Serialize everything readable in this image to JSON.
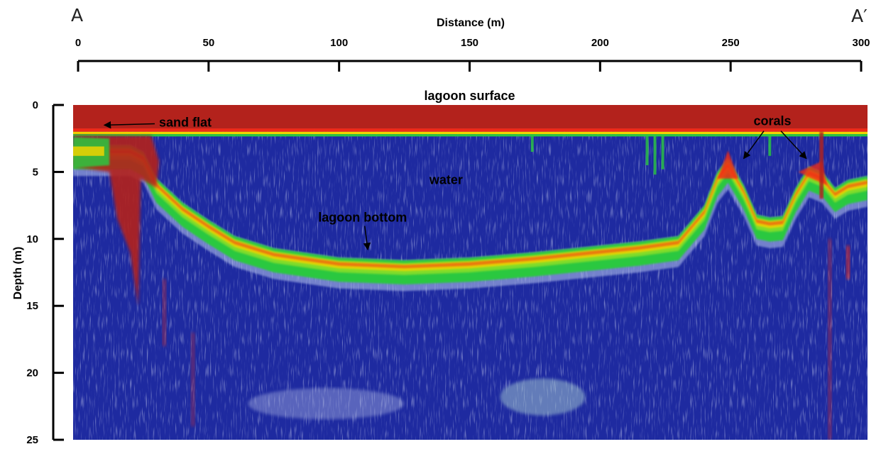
{
  "chart_data": {
    "type": "heatmap",
    "title": "",
    "profile_start_label": "A",
    "profile_end_label": "A′",
    "xlabel": "Distance (m)",
    "ylabel": "Depth (m)",
    "xlim": [
      0,
      300
    ],
    "ylim": [
      0,
      25
    ],
    "x_ticks": [
      0,
      50,
      100,
      150,
      200,
      250,
      300
    ],
    "y_ticks": [
      0,
      5,
      10,
      15,
      20,
      25
    ],
    "x_tick_position": "top",
    "y_inverted": true,
    "surface_depth_m": 2.3,
    "color_scale": {
      "strong": "#b3221c",
      "high": "#ef2a17",
      "mid": "#f0d400",
      "low": "#29c840",
      "background": "#1e2aa0"
    },
    "bottom_profile": {
      "distance_m": [
        0,
        10,
        20,
        25,
        30,
        40,
        50,
        60,
        75,
        100,
        125,
        150,
        175,
        200,
        215,
        230,
        240,
        245,
        249,
        255,
        260,
        265,
        270,
        275,
        280,
        285,
        290,
        295,
        300
      ],
      "depth_m": [
        3.0,
        3.0,
        3.0,
        3.5,
        5.5,
        7.3,
        8.6,
        9.8,
        10.7,
        11.4,
        11.6,
        11.4,
        11.0,
        10.5,
        10.2,
        9.8,
        7.5,
        5.0,
        4.0,
        6.0,
        8.2,
        8.4,
        8.3,
        6.2,
        4.6,
        5.0,
        6.2,
        5.6,
        5.3
      ]
    },
    "annotations": [
      {
        "id": "lagoon-surface",
        "text": "lagoon surface",
        "x": 150,
        "y": -0.7,
        "anchor": "middle"
      },
      {
        "id": "sand-flat",
        "text": "sand flat",
        "x": 31,
        "y": 1.3,
        "anchor": "start",
        "arrow_to": [
          10,
          1.5
        ]
      },
      {
        "id": "water",
        "text": "water",
        "x": 141,
        "y": 5.6,
        "anchor": "middle"
      },
      {
        "id": "lagoon-bottom",
        "text": "lagoon bottom",
        "x": 109,
        "y": 8.4,
        "anchor": "middle",
        "arrow_to": [
          111,
          10.8
        ]
      },
      {
        "id": "corals",
        "text": "corals",
        "x": 266,
        "y": 1.2,
        "anchor": "middle",
        "arrows_to": [
          [
            255,
            4.0
          ],
          [
            279,
            4.0
          ]
        ]
      }
    ]
  }
}
